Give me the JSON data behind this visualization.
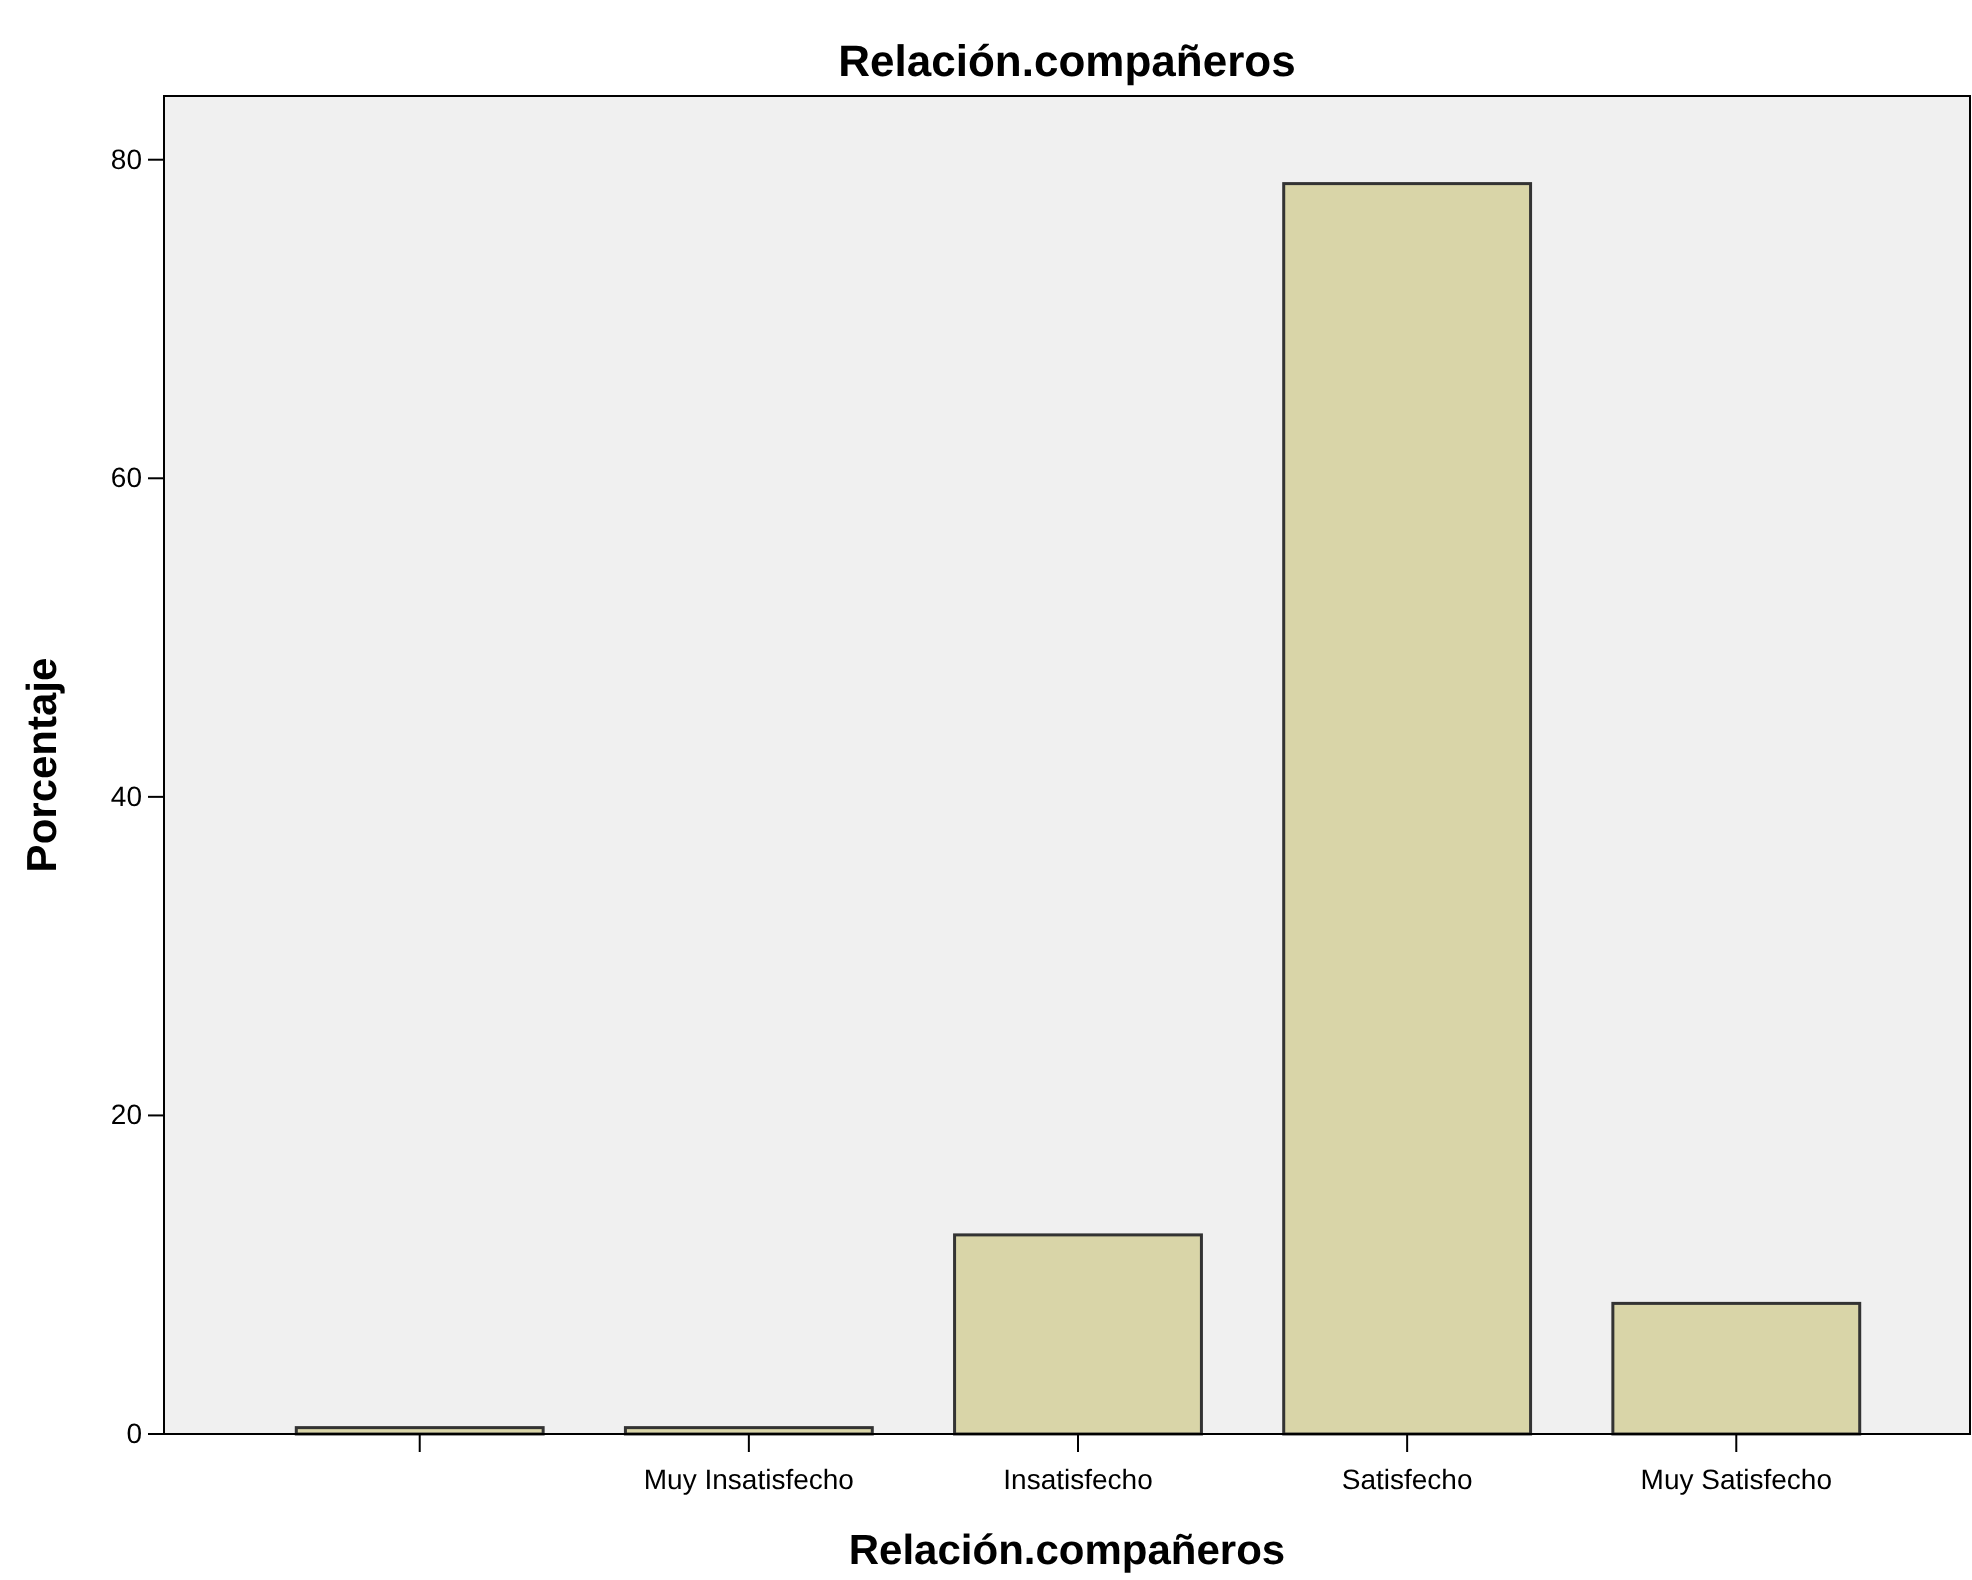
{
  "chart_data": {
    "type": "bar",
    "title": "Relación.compañeros",
    "xlabel": "Relación.compañeros",
    "ylabel": "Porcentaje",
    "categories": [
      null,
      "Muy Insatisfecho",
      "Insatisfecho",
      "Satisfecho",
      "Muy Satisfecho"
    ],
    "values": [
      0.4,
      0.4,
      12.5,
      78.5,
      8.2
    ],
    "color": "#d9d5a8",
    "ylim": [
      0,
      84
    ],
    "yticks": [
      0,
      20,
      40,
      60,
      80
    ],
    "grid": false
  }
}
